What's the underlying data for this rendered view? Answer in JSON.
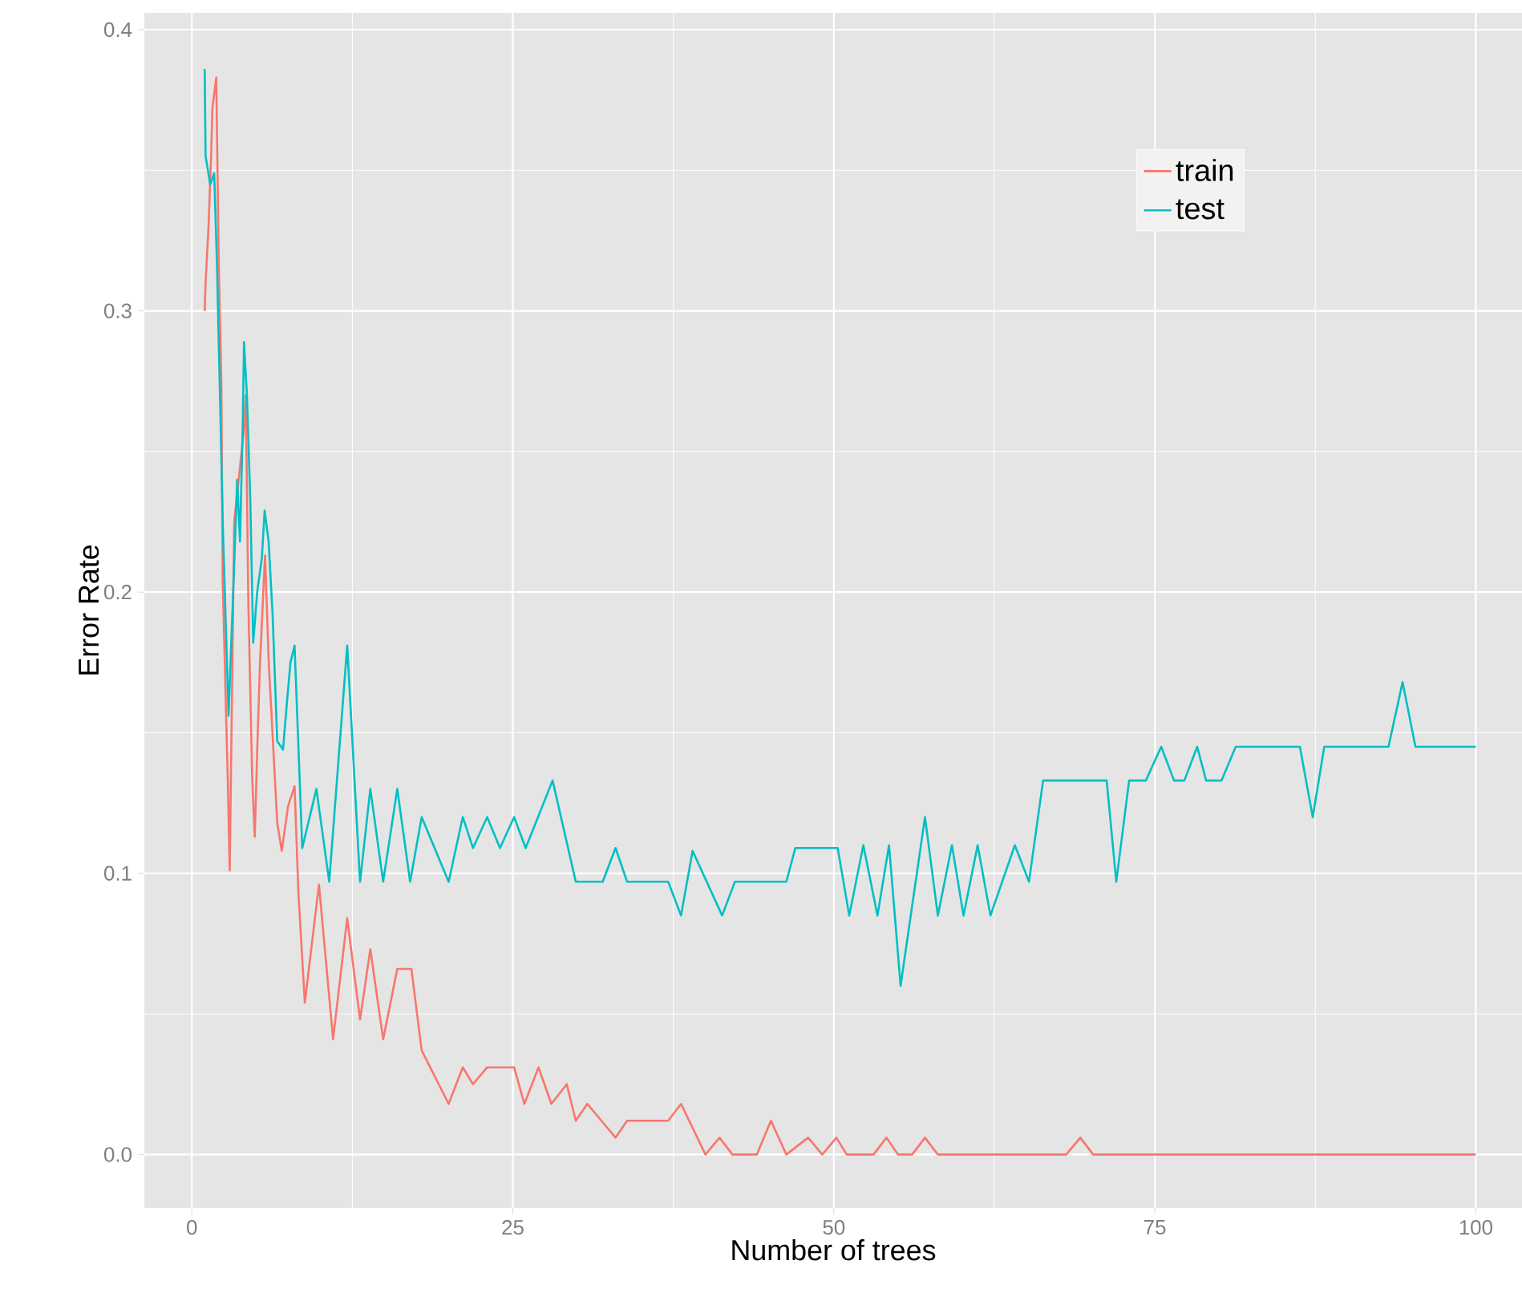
{
  "chart_data": {
    "type": "line",
    "xlabel": "Number of trees",
    "ylabel": "Error Rate",
    "xlim": [
      -3.7,
      103.6
    ],
    "ylim": [
      -0.019,
      0.406
    ],
    "xticks": [
      0,
      25,
      50,
      75,
      100
    ],
    "yticks": [
      {
        "value": 0,
        "label": "0.0"
      },
      {
        "value": 0.1,
        "label": "0.1"
      },
      {
        "value": 0.2,
        "label": "0.2"
      },
      {
        "value": 0.3,
        "label": "0.3"
      },
      {
        "value": 0.4,
        "label": "0.4"
      }
    ],
    "grid": true,
    "legend": "top right",
    "marker": "none",
    "line_style": "solid",
    "series": [
      {
        "name": "train",
        "color": "#f8766d",
        "x": [
          1,
          1.07,
          1.3,
          1.5,
          1.6,
          1.9,
          2.1,
          2.3,
          2.4,
          2.8,
          2.95,
          3.3,
          4.06,
          4.2,
          4.4,
          4.7,
          4.9,
          5.1,
          5.3,
          5.7,
          6,
          6.65,
          7,
          7.5,
          8,
          8.3,
          8.8,
          9.9,
          11,
          12.1,
          13.1,
          13.9,
          14.9,
          16,
          17.1,
          17.9,
          20,
          21.1,
          21.9,
          23,
          25.1,
          25.9,
          27,
          28,
          29.2,
          29.9,
          30.8,
          33,
          33.9,
          37.1,
          38.1,
          40,
          41.1,
          42.1,
          44,
          45.1,
          46.3,
          48,
          49.1,
          50.2,
          51,
          53.1,
          54.1,
          55,
          56.1,
          57.1,
          58.1,
          68.1,
          69.2,
          70.2,
          100
        ],
        "values": [
          0.3,
          0.31,
          0.33,
          0.355,
          0.372,
          0.383,
          0.316,
          0.274,
          0.204,
          0.133,
          0.101,
          0.225,
          0.258,
          0.27,
          0.196,
          0.134,
          0.113,
          0.145,
          0.174,
          0.213,
          0.174,
          0.118,
          0.108,
          0.124,
          0.131,
          0.093,
          0.054,
          0.096,
          0.041,
          0.084,
          0.048,
          0.073,
          0.041,
          0.066,
          0.066,
          0.037,
          0.018,
          0.031,
          0.025,
          0.031,
          0.031,
          0.018,
          0.031,
          0.018,
          0.025,
          0.012,
          0.018,
          0.006,
          0.012,
          0.012,
          0.018,
          0,
          0.006,
          0,
          0,
          0.012,
          0,
          0.006,
          0,
          0.006,
          0,
          0,
          0.006,
          0,
          0,
          0.006,
          0,
          0,
          0.006,
          0,
          0
        ]
      },
      {
        "name": "test",
        "color": "#00bfc4",
        "x": [
          1,
          1.07,
          1.43,
          1.74,
          1.96,
          2.19,
          2.41,
          2.86,
          3.3,
          3.53,
          3.75,
          3.97,
          4.06,
          4.29,
          4.55,
          4.78,
          5.09,
          5.45,
          5.67,
          5.98,
          6.29,
          6.65,
          7.1,
          7.41,
          7.68,
          8,
          8.6,
          9.7,
          10.7,
          12.1,
          13.1,
          13.9,
          14.9,
          16,
          17,
          17.9,
          20,
          21.1,
          21.9,
          23,
          24,
          25.1,
          26,
          28.1,
          29.9,
          32,
          33,
          33.9,
          37.1,
          38.1,
          39,
          41.3,
          42.3,
          46.3,
          47,
          50.3,
          51.2,
          52.3,
          53.4,
          54.3,
          55.2,
          57.1,
          58.1,
          59.2,
          60.1,
          61.2,
          62.2,
          64.1,
          65.2,
          66.3,
          71.25,
          72,
          73,
          74.3,
          75.5,
          76.5,
          77.3,
          78.3,
          79,
          80.2,
          81.3,
          86.3,
          87.3,
          88.2,
          93.2,
          94.3,
          95.3,
          100
        ],
        "values": [
          0.386,
          0.355,
          0.345,
          0.349,
          0.316,
          0.27,
          0.224,
          0.156,
          0.21,
          0.24,
          0.218,
          0.26,
          0.289,
          0.27,
          0.233,
          0.182,
          0.2,
          0.212,
          0.229,
          0.218,
          0.192,
          0.147,
          0.144,
          0.161,
          0.175,
          0.181,
          0.109,
          0.13,
          0.097,
          0.181,
          0.097,
          0.13,
          0.097,
          0.13,
          0.097,
          0.12,
          0.097,
          0.12,
          0.109,
          0.12,
          0.109,
          0.12,
          0.109,
          0.133,
          0.097,
          0.097,
          0.109,
          0.097,
          0.097,
          0.085,
          0.108,
          0.085,
          0.097,
          0.097,
          0.109,
          0.109,
          0.085,
          0.11,
          0.085,
          0.11,
          0.06,
          0.12,
          0.085,
          0.11,
          0.085,
          0.11,
          0.085,
          0.11,
          0.097,
          0.133,
          0.133,
          0.097,
          0.133,
          0.133,
          0.145,
          0.133,
          0.133,
          0.145,
          0.133,
          0.133,
          0.145,
          0.145,
          0.12,
          0.145,
          0.145,
          0.168,
          0.145,
          0.145
        ]
      }
    ]
  }
}
